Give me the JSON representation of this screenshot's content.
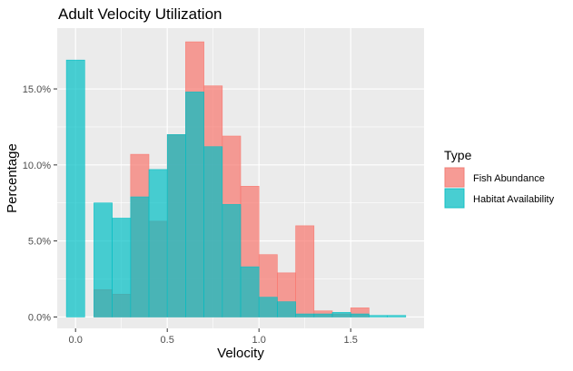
{
  "chart_data": {
    "type": "bar",
    "title": "Adult Velocity Utilization",
    "xlabel": "Velocity",
    "ylabel": "Percentage",
    "bin_width": 0.1,
    "xlim": [
      -0.1,
      1.9
    ],
    "ylim": [
      -0.0075,
      0.19
    ],
    "x_ticks": [
      0.0,
      0.5,
      1.0,
      1.5
    ],
    "x_tick_labels": [
      "0.0",
      "0.5",
      "1.0",
      "1.5"
    ],
    "y_ticks": [
      0.0,
      0.05,
      0.1,
      0.15
    ],
    "y_tick_labels": [
      "0.0%",
      "5.0%",
      "10.0%",
      "15.0%"
    ],
    "grid": true,
    "legend": {
      "title": "Type",
      "placement": "right"
    },
    "bin_centers": [
      0.0,
      0.15,
      0.25,
      0.35,
      0.45,
      0.55,
      0.65,
      0.75,
      0.85,
      0.95,
      1.05,
      1.15,
      1.25,
      1.35,
      1.45,
      1.55,
      1.65,
      1.75
    ],
    "series": [
      {
        "name": "Fish Abundance",
        "color": "#F8766D",
        "values": [
          0.0,
          0.018,
          0.015,
          0.107,
          0.063,
          0.12,
          0.181,
          0.152,
          0.119,
          0.086,
          0.041,
          0.029,
          0.06,
          0.004,
          0.002,
          0.006,
          0.0,
          0.0
        ]
      },
      {
        "name": "Habitat Availability",
        "color": "#00BFC4",
        "values": [
          0.169,
          0.075,
          0.065,
          0.079,
          0.097,
          0.12,
          0.148,
          0.112,
          0.074,
          0.033,
          0.013,
          0.01,
          0.002,
          0.002,
          0.003,
          0.002,
          0.001,
          0.001
        ]
      }
    ]
  }
}
